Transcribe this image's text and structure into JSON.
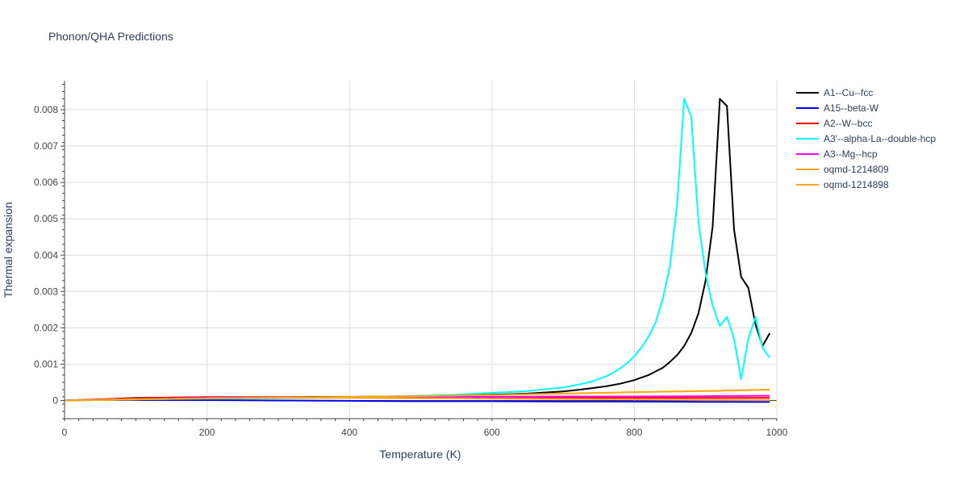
{
  "chart_data": {
    "type": "line",
    "title": "Phonon/QHA Predictions",
    "xlabel": "Temperature (K)",
    "ylabel": "Thermal expansion",
    "xlim": [
      0,
      1000
    ],
    "ylim": [
      -0.0005,
      0.0088
    ],
    "xticks": [
      0,
      200,
      400,
      600,
      800,
      1000
    ],
    "xtick_labels": [
      "0",
      "200",
      "400",
      "600",
      "800",
      "1000"
    ],
    "yticks": [
      0,
      0.001,
      0.002,
      0.003,
      0.004,
      0.005,
      0.006,
      0.007,
      0.008
    ],
    "ytick_labels": [
      "0",
      "0.001",
      "0.002",
      "0.003",
      "0.004",
      "0.005",
      "0.006",
      "0.007",
      "0.008"
    ],
    "grid": true,
    "legend_position": "top-right",
    "series": [
      {
        "name": "A1--Cu--fcc",
        "color": "#000000",
        "x": [
          0,
          30,
          60,
          100,
          150,
          200,
          250,
          300,
          350,
          400,
          450,
          500,
          550,
          600,
          650,
          700,
          720,
          740,
          760,
          780,
          800,
          820,
          840,
          850,
          860,
          870,
          880,
          890,
          900,
          910,
          920,
          930,
          940,
          950,
          960,
          970,
          980,
          990
        ],
        "y": [
          0,
          2e-05,
          4e-05,
          7e-05,
          8e-05,
          9e-05,
          9e-05,
          9e-05,
          0.0001,
          0.0001,
          0.00011,
          0.00012,
          0.00014,
          0.00016,
          0.00019,
          0.00025,
          0.00029,
          0.00034,
          0.00039,
          0.00046,
          0.00056,
          0.0007,
          0.0009,
          0.00106,
          0.00125,
          0.0015,
          0.00186,
          0.0024,
          0.0033,
          0.0048,
          0.0083,
          0.0081,
          0.0047,
          0.0034,
          0.0031,
          0.0021,
          0.0015,
          0.00185
        ]
      },
      {
        "name": "A15--beta-W",
        "color": "#0000ff",
        "x": [
          0,
          50,
          100,
          200,
          300,
          400,
          500,
          600,
          700,
          800,
          900,
          990
        ],
        "y": [
          0,
          2e-05,
          2e-05,
          1e-05,
          0,
          -1e-05,
          -2e-05,
          -2e-05,
          -3e-05,
          -3e-05,
          -4e-05,
          -4e-05
        ]
      },
      {
        "name": "A2--W--bcc",
        "color": "#ff0000",
        "x": [
          0,
          50,
          100,
          150,
          200,
          300,
          400,
          500,
          600,
          700,
          800,
          900,
          990
        ],
        "y": [
          0,
          3e-05,
          6e-05,
          8e-05,
          9e-05,
          9e-05,
          9e-05,
          9e-05,
          8e-05,
          8e-05,
          7e-05,
          7e-05,
          7e-05
        ]
      },
      {
        "name": "A3'--alpha-La--double-hcp",
        "color": "#00ffff",
        "x": [
          0,
          50,
          100,
          200,
          300,
          400,
          500,
          550,
          600,
          650,
          700,
          720,
          740,
          760,
          770,
          780,
          790,
          800,
          810,
          820,
          830,
          840,
          850,
          860,
          870,
          880,
          890,
          900,
          910,
          920,
          930,
          940,
          950,
          960,
          970,
          980,
          990
        ],
        "y": [
          0,
          1e-05,
          3e-05,
          5e-05,
          6e-05,
          9e-05,
          0.00013,
          0.00016,
          0.00021,
          0.00026,
          0.00036,
          0.00043,
          0.00052,
          0.00066,
          0.00076,
          0.00088,
          0.00103,
          0.00122,
          0.00146,
          0.00176,
          0.00215,
          0.0028,
          0.0037,
          0.0054,
          0.0083,
          0.0078,
          0.0049,
          0.0035,
          0.0026,
          0.00205,
          0.0023,
          0.0017,
          0.00058,
          0.0017,
          0.0023,
          0.00145,
          0.00118
        ]
      },
      {
        "name": "A3--Mg--hcp",
        "color": "#ff00ff",
        "x": [
          0,
          50,
          100,
          200,
          300,
          400,
          500,
          600,
          700,
          800,
          900,
          990
        ],
        "y": [
          0,
          2e-05,
          4e-05,
          7e-05,
          8e-05,
          9e-05,
          0.0001,
          0.0001,
          0.00011,
          0.00011,
          0.00012,
          0.00013
        ]
      },
      {
        "name": "oqmd-1214809",
        "color": "#ffa500",
        "x": [
          0,
          50,
          100,
          200,
          300,
          400,
          500,
          600,
          700,
          800,
          900,
          990
        ],
        "y": [
          0,
          1e-05,
          3e-05,
          6e-05,
          8e-05,
          0.0001,
          0.00012,
          0.00015,
          0.00019,
          0.00023,
          0.00026,
          0.0003
        ]
      },
      {
        "name": "oqmd-1214898",
        "color": "#f5a623",
        "x": [
          0,
          50,
          100,
          200,
          300,
          400,
          500,
          600,
          700,
          800,
          900,
          990
        ],
        "y": [
          0,
          2e-05,
          4e-05,
          6e-05,
          7e-05,
          7e-05,
          6e-05,
          5e-05,
          4e-05,
          3e-05,
          2e-05,
          1e-05
        ]
      }
    ]
  }
}
